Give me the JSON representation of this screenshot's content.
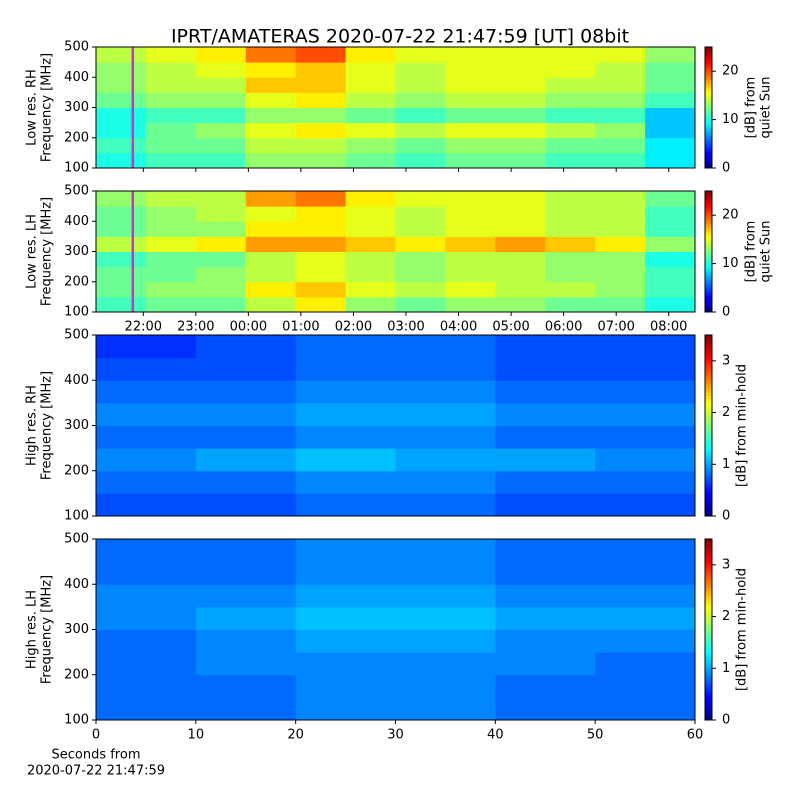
{
  "chart_data": [
    {
      "type": "heatmap",
      "title": "IPRT/AMATERAS 2020-07-22 21:47:59 [UT]   08bit",
      "ylabel": [
        "Low res. RH",
        "Frequency [MHz]"
      ],
      "xlim": [
        21.1,
        32.5
      ],
      "ylim": [
        100,
        500
      ],
      "yticks": [
        100,
        200,
        300,
        400,
        500
      ],
      "colormap": "jet",
      "marker_x": 21.8,
      "marker_color": "#cc33cc",
      "colorbar": {
        "label": [
          "[dB] from",
          "quiet Sun"
        ],
        "lim": [
          0,
          25
        ],
        "ticks": [
          0,
          10,
          20
        ]
      },
      "values": [
        [
          10,
          11,
          11,
          13,
          13,
          12,
          11,
          12,
          12,
          11,
          11,
          9
        ],
        [
          11,
          12,
          12,
          14,
          14,
          13,
          12,
          13,
          13,
          12,
          12,
          9
        ],
        [
          10,
          12,
          13,
          15,
          16,
          15,
          14,
          15,
          15,
          14,
          13,
          8
        ],
        [
          10,
          11,
          11,
          13,
          13,
          12,
          11,
          12,
          12,
          11,
          11,
          8
        ],
        [
          12,
          13,
          13,
          15,
          16,
          14,
          13,
          14,
          14,
          13,
          13,
          11
        ],
        [
          13,
          14,
          14,
          17,
          17,
          15,
          14,
          15,
          15,
          14,
          14,
          12
        ],
        [
          13,
          14,
          15,
          16,
          17,
          15,
          14,
          15,
          15,
          15,
          14,
          12
        ],
        [
          14,
          15,
          16,
          19,
          20,
          16,
          15,
          15,
          15,
          15,
          15,
          13
        ]
      ]
    },
    {
      "type": "heatmap",
      "ylabel": [
        "Low res. LH",
        "Frequency [MHz]"
      ],
      "xlim": [
        21.1,
        32.5
      ],
      "ylim": [
        100,
        500
      ],
      "yticks": [
        100,
        200,
        300,
        400,
        500
      ],
      "xticks": [
        {
          "value": 22,
          "label": "22:00"
        },
        {
          "value": 23,
          "label": "23:00"
        },
        {
          "value": 24,
          "label": "00:00"
        },
        {
          "value": 25,
          "label": "01:00"
        },
        {
          "value": 26,
          "label": "02:00"
        },
        {
          "value": 27,
          "label": "03:00"
        },
        {
          "value": 28,
          "label": "04:00"
        },
        {
          "value": 29,
          "label": "05:00"
        },
        {
          "value": 30,
          "label": "06:00"
        },
        {
          "value": 31,
          "label": "07:00"
        },
        {
          "value": 32,
          "label": "08:00"
        }
      ],
      "colormap": "jet",
      "marker_x": 21.8,
      "marker_color": "#cc33cc",
      "colorbar": {
        "label": [
          "[dB] from",
          "quiet Sun"
        ],
        "lim": [
          0,
          25
        ],
        "ticks": [
          0,
          10,
          20
        ]
      },
      "values": [
        [
          11,
          12,
          12,
          14,
          16,
          13,
          12,
          13,
          13,
          12,
          12,
          10
        ],
        [
          12,
          13,
          13,
          16,
          17,
          15,
          14,
          15,
          14,
          14,
          13,
          11
        ],
        [
          12,
          12,
          13,
          14,
          15,
          14,
          13,
          14,
          14,
          13,
          13,
          11
        ],
        [
          11,
          12,
          12,
          14,
          15,
          14,
          13,
          14,
          14,
          13,
          13,
          10
        ],
        [
          14,
          15,
          16,
          18,
          18,
          17,
          16,
          17,
          18,
          17,
          16,
          13
        ],
        [
          12,
          13,
          13,
          16,
          16,
          15,
          14,
          15,
          15,
          14,
          14,
          11
        ],
        [
          12,
          13,
          14,
          15,
          16,
          15,
          14,
          15,
          15,
          14,
          14,
          11
        ],
        [
          13,
          14,
          14,
          18,
          19,
          16,
          15,
          15,
          15,
          14,
          14,
          12
        ]
      ]
    },
    {
      "type": "heatmap",
      "ylabel": [
        "High res. RH",
        "Frequency [MHz]"
      ],
      "xlim": [
        0,
        60
      ],
      "ylim": [
        100,
        500
      ],
      "yticks": [
        100,
        200,
        300,
        400,
        500
      ],
      "colormap": "jet",
      "colorbar": {
        "label": [
          "[dB] from min-hold"
        ],
        "lim": [
          0,
          3.5
        ],
        "ticks": [
          0,
          1,
          2,
          3
        ]
      },
      "values": [
        [
          0.7,
          0.7,
          0.8,
          0.8,
          0.7,
          0.7
        ],
        [
          0.8,
          0.8,
          0.9,
          0.9,
          0.8,
          0.8
        ],
        [
          0.9,
          1.0,
          1.1,
          1.0,
          1.0,
          0.9
        ],
        [
          0.8,
          0.8,
          0.9,
          0.9,
          0.8,
          0.8
        ],
        [
          0.9,
          0.9,
          1.0,
          1.0,
          0.9,
          0.9
        ],
        [
          0.8,
          0.8,
          0.9,
          0.9,
          0.8,
          0.8
        ],
        [
          0.7,
          0.7,
          0.8,
          0.8,
          0.7,
          0.7
        ],
        [
          0.6,
          0.7,
          0.8,
          0.8,
          0.7,
          0.7
        ]
      ]
    },
    {
      "type": "heatmap",
      "ylabel": [
        "High res. LH",
        "Frequency [MHz]"
      ],
      "xlim": [
        0,
        60
      ],
      "ylim": [
        100,
        500
      ],
      "yticks": [
        100,
        200,
        300,
        400,
        500
      ],
      "xticks": [
        0,
        10,
        20,
        30,
        40,
        50,
        60
      ],
      "xlabel": [
        "Seconds from",
        "2020-07-22 21:47:59"
      ],
      "colormap": "jet",
      "colorbar": {
        "label": [
          "[dB] from min-hold"
        ],
        "lim": [
          0,
          3.5
        ],
        "ticks": [
          0,
          1,
          2,
          3
        ]
      },
      "values": [
        [
          0.8,
          0.8,
          0.9,
          0.9,
          0.8,
          0.8
        ],
        [
          0.8,
          0.8,
          0.9,
          0.9,
          0.8,
          0.8
        ],
        [
          0.8,
          0.9,
          0.9,
          0.9,
          0.9,
          0.8
        ],
        [
          0.8,
          0.9,
          1.0,
          1.0,
          0.9,
          0.9
        ],
        [
          0.9,
          1.0,
          1.1,
          1.1,
          1.0,
          1.0
        ],
        [
          0.9,
          0.9,
          1.0,
          1.0,
          0.9,
          0.9
        ],
        [
          0.8,
          0.8,
          0.9,
          0.9,
          0.8,
          0.8
        ],
        [
          0.8,
          0.8,
          0.9,
          0.9,
          0.8,
          0.8
        ]
      ]
    }
  ]
}
